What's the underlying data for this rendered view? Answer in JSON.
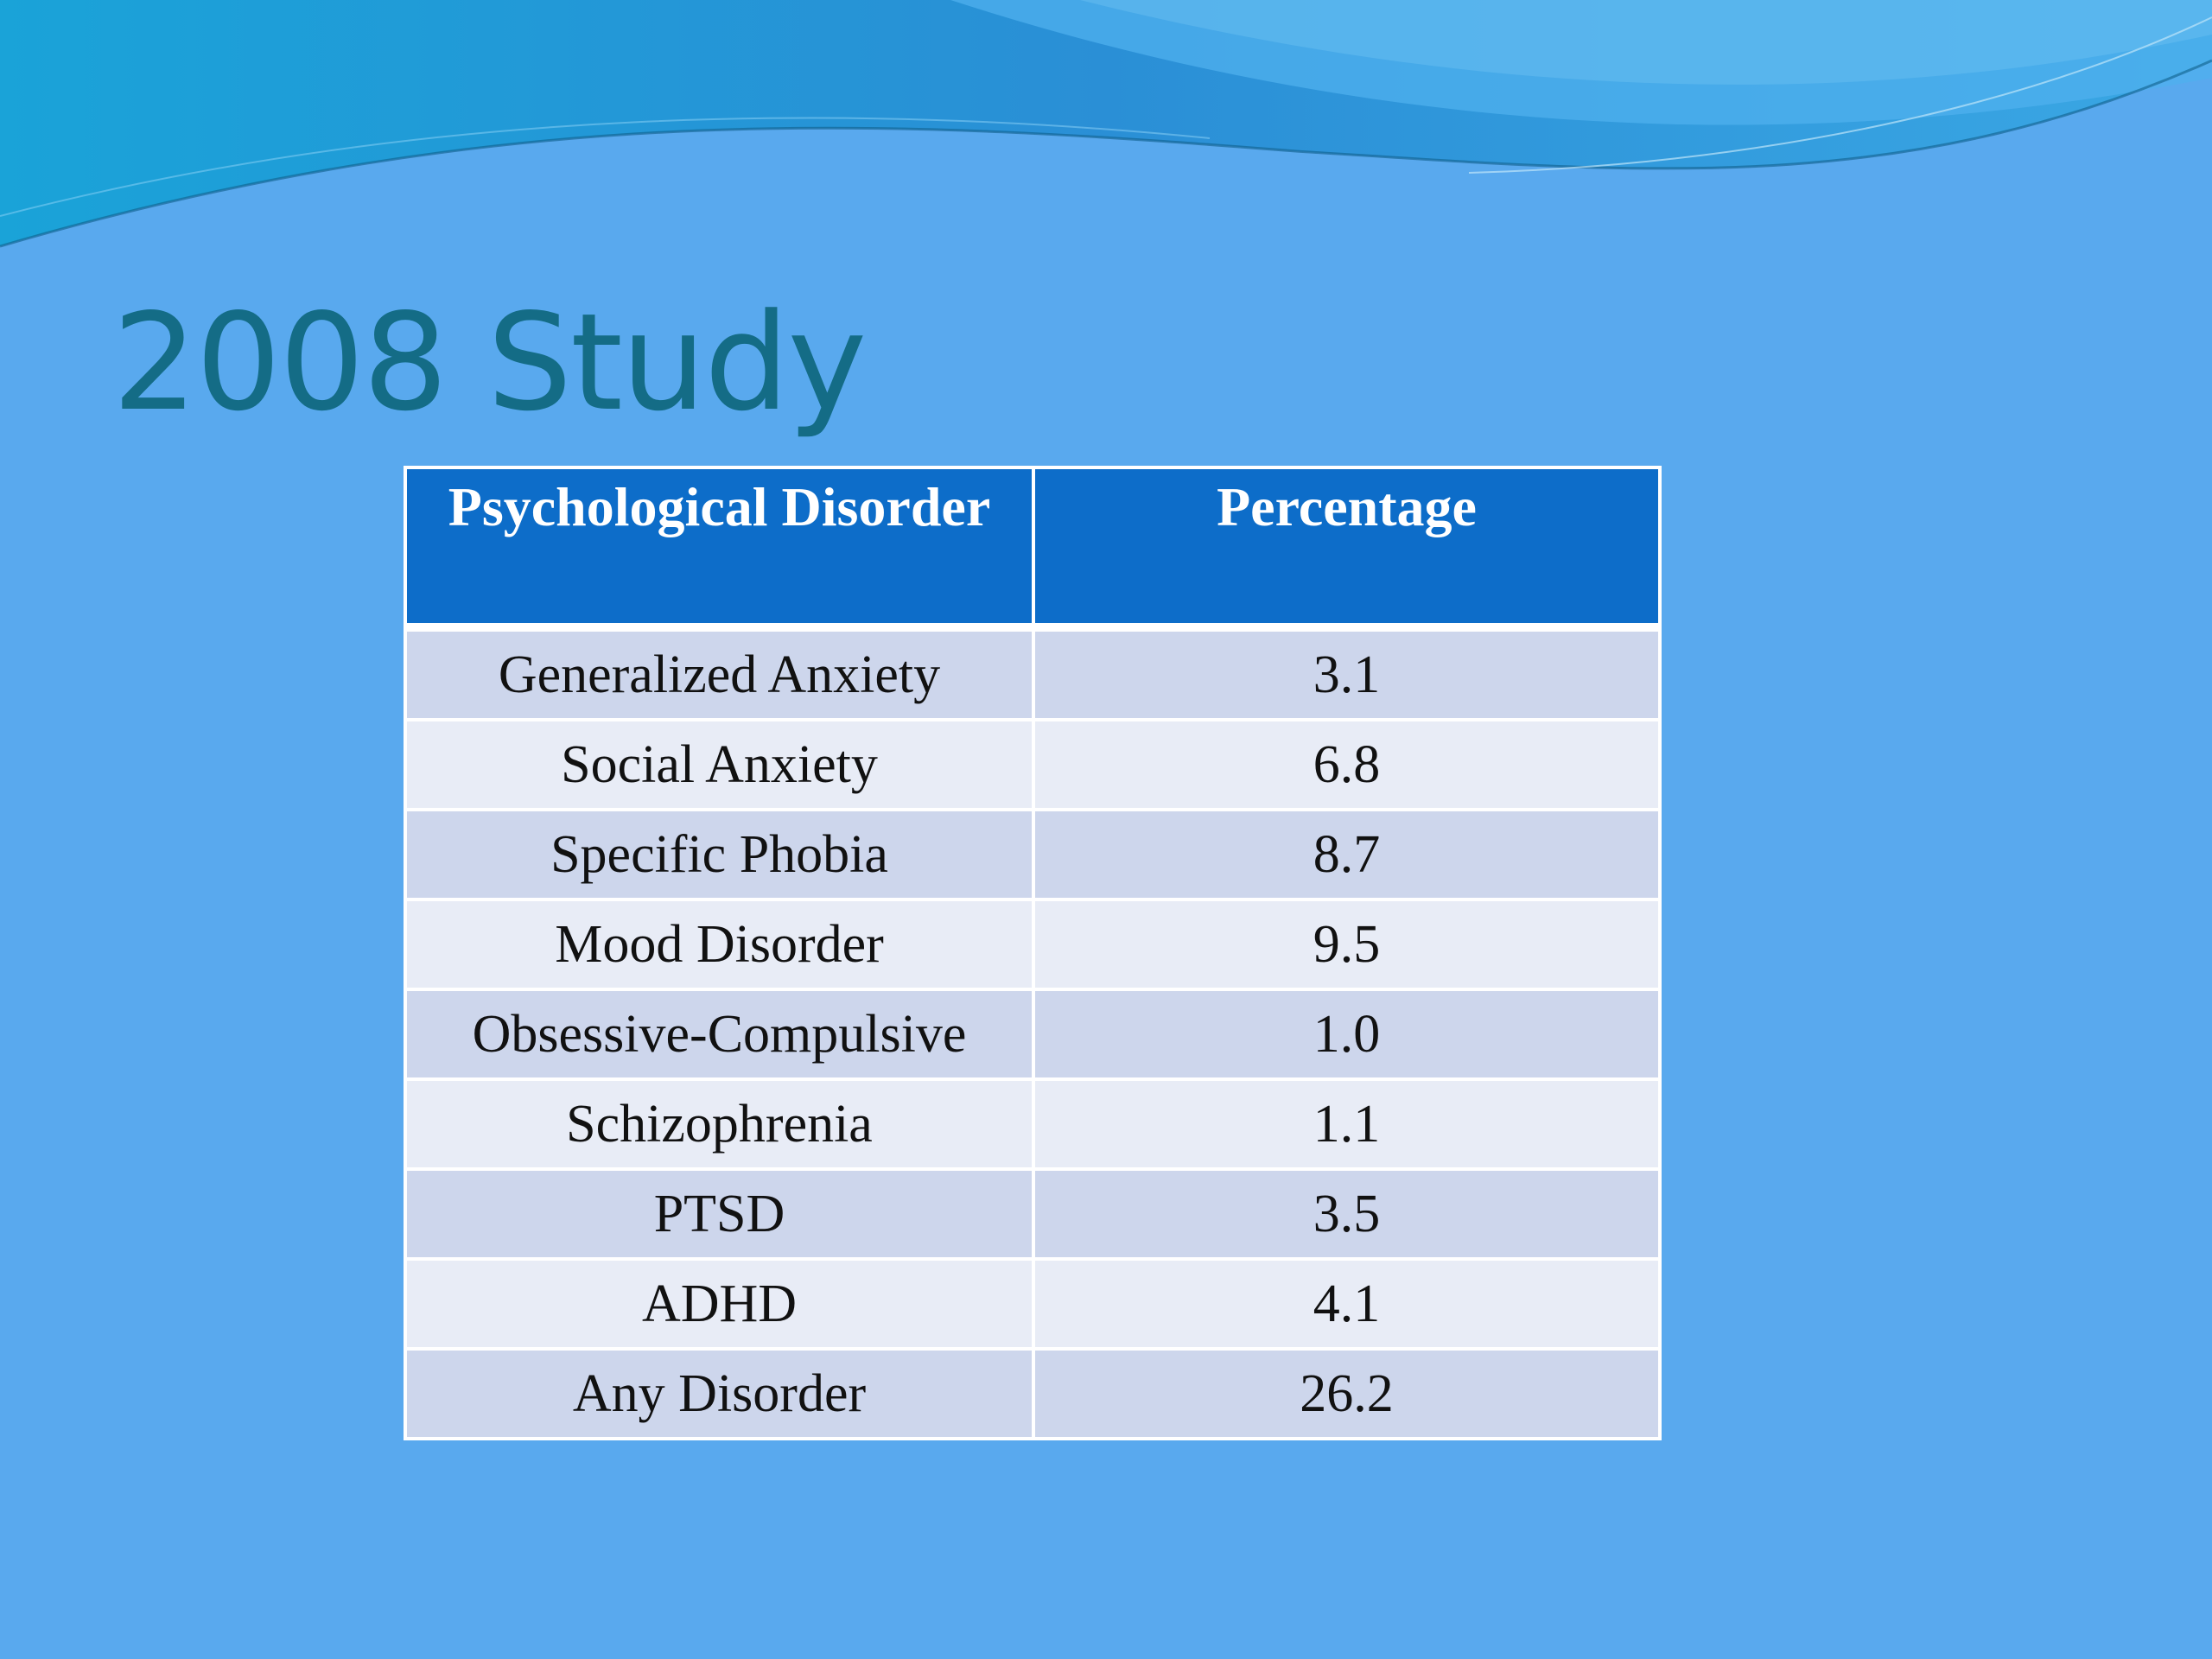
{
  "slide": {
    "title": "2008 Study",
    "background_color": "#59a9ee",
    "title_color": "#146c86"
  },
  "table": {
    "header_color": "#0d6dc9",
    "headers": {
      "disorder": "Psychological Disorder",
      "percentage": "Percentage"
    },
    "rows": [
      {
        "disorder": "Generalized Anxiety",
        "percentage": "3.1"
      },
      {
        "disorder": "Social Anxiety",
        "percentage": "6.8"
      },
      {
        "disorder": "Specific Phobia",
        "percentage": "8.7"
      },
      {
        "disorder": "Mood Disorder",
        "percentage": "9.5"
      },
      {
        "disorder": "Obsessive-Compulsive",
        "percentage": "1.0"
      },
      {
        "disorder": "Schizophrenia",
        "percentage": "1.1"
      },
      {
        "disorder": "PTSD",
        "percentage": "3.5"
      },
      {
        "disorder": "ADHD",
        "percentage": "4.1"
      },
      {
        "disorder": "Any Disorder",
        "percentage": "26.2"
      }
    ]
  }
}
